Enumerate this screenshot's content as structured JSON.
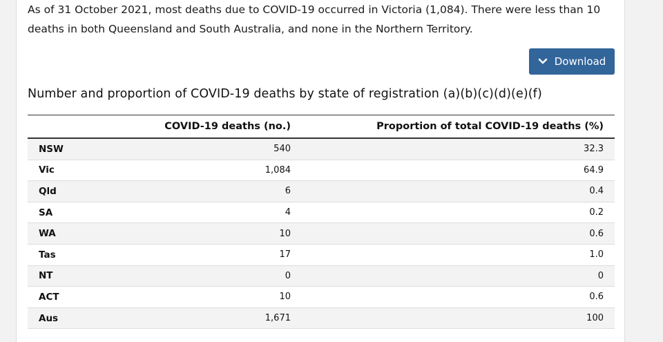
{
  "intro": {
    "text": "As of 31 October 2021, most deaths due to COVID-19 occurred in Victoria (1,084). There were less than 10 deaths in both Queensland and South Australia, and none in the Northern Territory."
  },
  "download": {
    "label": "Download",
    "icon": "chevron-down-icon",
    "color": "#32659a"
  },
  "table": {
    "title": "Number and proportion of COVID-19 deaths by state of registration (a)(b)(c)(d)(e)(f)",
    "headers": {
      "state": "",
      "deaths": "COVID-19 deaths (no.)",
      "proportion": "Proportion of total COVID-19 deaths (%)"
    },
    "rows": [
      {
        "state": "NSW",
        "deaths": "540",
        "proportion": "32.3"
      },
      {
        "state": "Vic",
        "deaths": "1,084",
        "proportion": "64.9"
      },
      {
        "state": "Qld",
        "deaths": "6",
        "proportion": "0.4"
      },
      {
        "state": "SA",
        "deaths": "4",
        "proportion": "0.2"
      },
      {
        "state": "WA",
        "deaths": "10",
        "proportion": "0.6"
      },
      {
        "state": "Tas",
        "deaths": "17",
        "proportion": "1.0"
      },
      {
        "state": "NT",
        "deaths": "0",
        "proportion": "0"
      },
      {
        "state": "ACT",
        "deaths": "10",
        "proportion": "0.6"
      },
      {
        "state": "Aus",
        "deaths": "1,671",
        "proportion": "100"
      }
    ]
  }
}
